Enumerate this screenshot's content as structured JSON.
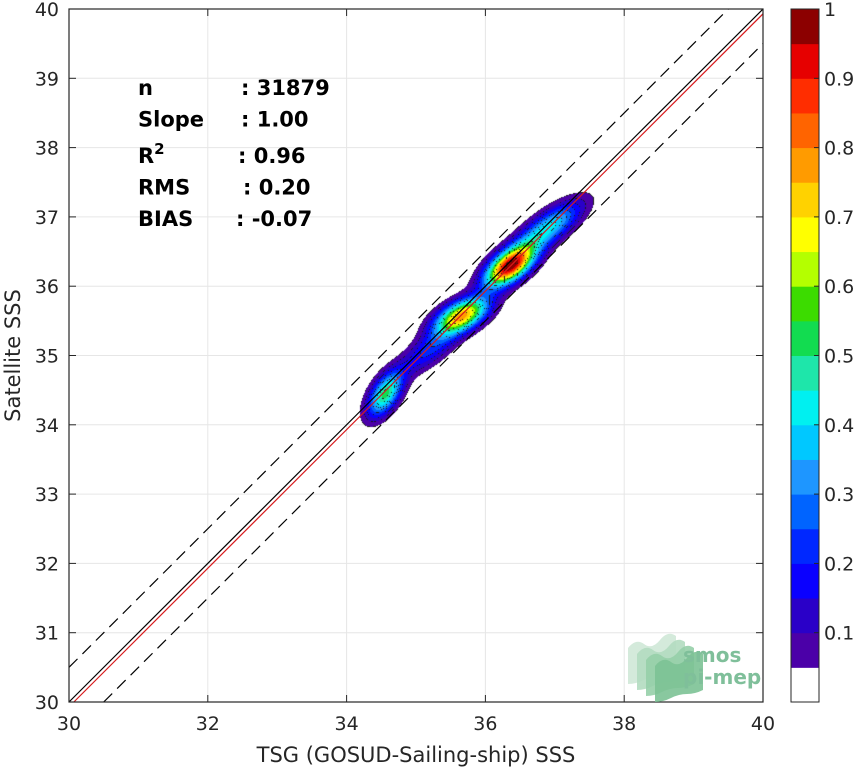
{
  "chart_data": {
    "type": "heatmap",
    "subtype": "density-scatter",
    "xlabel": "TSG (GOSUD-Sailing-ship) SSS",
    "ylabel": "Satellite SSS",
    "xlim": [
      30,
      40
    ],
    "ylim": [
      30,
      40
    ],
    "x_ticks": [
      "30",
      "32",
      "34",
      "36",
      "38",
      "40"
    ],
    "y_ticks": [
      "30",
      "31",
      "32",
      "33",
      "34",
      "35",
      "36",
      "37",
      "38",
      "39",
      "40"
    ],
    "grid": true,
    "reference_lines": {
      "identity": {
        "slope": 1,
        "intercept": 0,
        "color": "#000000"
      },
      "regression": {
        "slope": 1.0,
        "intercept": 0.0,
        "color": "#d7191c"
      },
      "bounds": {
        "offset": 0.5,
        "style": "dashed",
        "color": "#000000"
      }
    },
    "stats": [
      {
        "label": "n",
        "sup": "",
        "value": ": 31879"
      },
      {
        "label": "Slope",
        "sup": "",
        "value": ": 1.00"
      },
      {
        "label": "R",
        "sup": "2",
        "value": ": 0.96"
      },
      {
        "label": "RMS",
        "sup": "",
        "value": ": 0.20"
      },
      {
        "label": "BIAS",
        "sup": "",
        "value": ": -0.07"
      }
    ],
    "density_peaks": [
      {
        "x": 34.55,
        "y": 34.45,
        "sx": 0.17,
        "sy": 0.22,
        "rho": 0.55,
        "amp": 0.52
      },
      {
        "x": 35.65,
        "y": 35.58,
        "sx": 0.26,
        "sy": 0.18,
        "rho": 0.55,
        "amp": 0.76
      },
      {
        "x": 36.35,
        "y": 36.3,
        "sx": 0.24,
        "sy": 0.2,
        "rho": 0.6,
        "amp": 1.0
      },
      {
        "x": 36.9,
        "y": 36.85,
        "sx": 0.32,
        "sy": 0.25,
        "rho": 0.75,
        "amp": 0.42
      },
      {
        "x": 35.2,
        "y": 35.1,
        "sx": 0.3,
        "sy": 0.25,
        "rho": 0.75,
        "amp": 0.22
      }
    ],
    "colorbar": {
      "ticks": [
        "0.1",
        "0.2",
        "0.3",
        "0.4",
        "0.5",
        "0.6",
        "0.7",
        "0.8",
        "0.9",
        "1"
      ],
      "range": [
        0,
        1
      ],
      "levels": [
        0.05,
        0.1,
        0.15,
        0.2,
        0.25,
        0.3,
        0.35,
        0.4,
        0.45,
        0.5,
        0.55,
        0.6,
        0.65,
        0.7,
        0.75,
        0.8,
        0.85,
        0.9,
        0.95
      ],
      "colors": [
        "#ffffff",
        "#4b00a8",
        "#2a00c8",
        "#0a00ff",
        "#0028ff",
        "#0064ff",
        "#1e96ff",
        "#00c8ff",
        "#00f0f0",
        "#1ee6aa",
        "#12dc50",
        "#3cdc00",
        "#b4ff00",
        "#ffff00",
        "#ffd200",
        "#ff9b00",
        "#ff6400",
        "#ff2d00",
        "#e60000",
        "#8c0000"
      ]
    }
  },
  "logo": {
    "line1": "smos",
    "line2": "pi-mep"
  }
}
